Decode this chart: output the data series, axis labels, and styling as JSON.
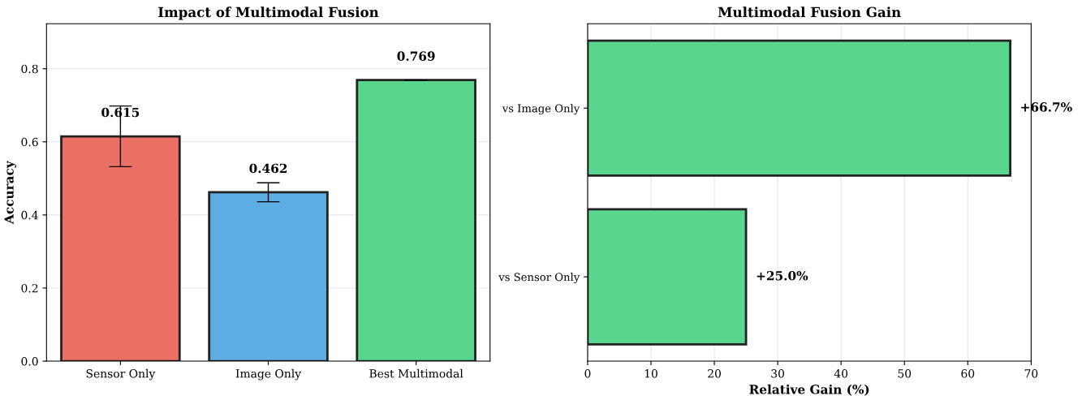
{
  "chart_data": [
    {
      "type": "bar",
      "title": "Impact of Multimodal Fusion",
      "ylabel": "Accuracy",
      "categories": [
        "Sensor Only",
        "Image Only",
        "Best Multimodal"
      ],
      "values": [
        0.615,
        0.462,
        0.769
      ],
      "colors": [
        "#eb7064",
        "#5dade2",
        "#58d68d"
      ],
      "errors": [
        0.083,
        0.026,
        0
      ],
      "data_labels": true,
      "ylim": [
        0,
        0.923
      ],
      "yticks": [
        {
          "value": 0,
          "label": "0.0"
        },
        0.2,
        0.4,
        0.6,
        0.8
      ],
      "grid": "y"
    },
    {
      "type": "bar",
      "orientation": "horizontal",
      "title": "Multimodal Fusion Gain",
      "xlabel": "Relative Gain (%)",
      "categories": [
        "vs Image Only",
        "vs Sensor Only"
      ],
      "values": [
        66.7,
        25.0
      ],
      "color": "#58d68d",
      "value_labels": [
        "+66.7%",
        "+25.0%"
      ],
      "xlim": [
        0,
        70
      ],
      "xticks": [
        0,
        10,
        20,
        30,
        40,
        50,
        60,
        70
      ],
      "grid": "x"
    }
  ]
}
